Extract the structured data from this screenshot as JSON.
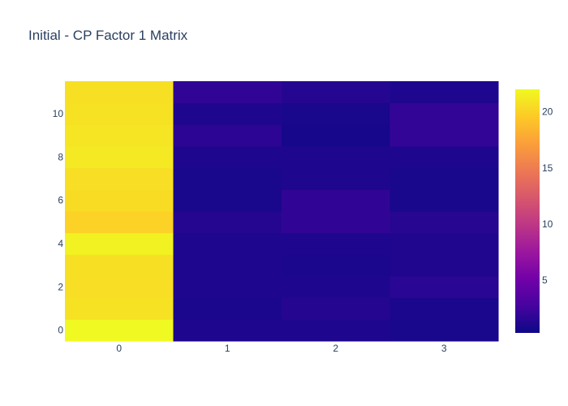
{
  "chart_data": {
    "type": "heatmap",
    "title": "Initial - CP Factor 1 Matrix",
    "xlabel": "",
    "ylabel": "",
    "x": [
      0,
      1,
      2,
      3
    ],
    "y": [
      0,
      1,
      2,
      3,
      4,
      5,
      6,
      7,
      8,
      9,
      10,
      11
    ],
    "x_tick_labels": [
      "0",
      "1",
      "2",
      "3"
    ],
    "y_tick_labels": [
      "0",
      "2",
      "4",
      "6",
      "8",
      "10"
    ],
    "colorscale": "plasma",
    "zmin": 0.3,
    "zmax": 22.0,
    "colorbar_tick_labels": [
      "5",
      "10",
      "15",
      "20"
    ],
    "z": [
      [
        22.0,
        1.0,
        1.0,
        0.8
      ],
      [
        20.8,
        0.9,
        1.3,
        0.9
      ],
      [
        20.6,
        1.0,
        1.0,
        1.5
      ],
      [
        20.7,
        1.0,
        0.9,
        1.1
      ],
      [
        21.6,
        1.0,
        1.0,
        1.1
      ],
      [
        20.0,
        1.3,
        1.8,
        1.4
      ],
      [
        20.5,
        0.8,
        1.8,
        0.8
      ],
      [
        20.6,
        0.8,
        1.0,
        0.8
      ],
      [
        21.2,
        1.0,
        1.0,
        1.0
      ],
      [
        21.0,
        1.6,
        0.7,
        1.9
      ],
      [
        20.8,
        1.0,
        0.8,
        1.9
      ],
      [
        20.7,
        1.8,
        1.3,
        1.0
      ]
    ]
  }
}
